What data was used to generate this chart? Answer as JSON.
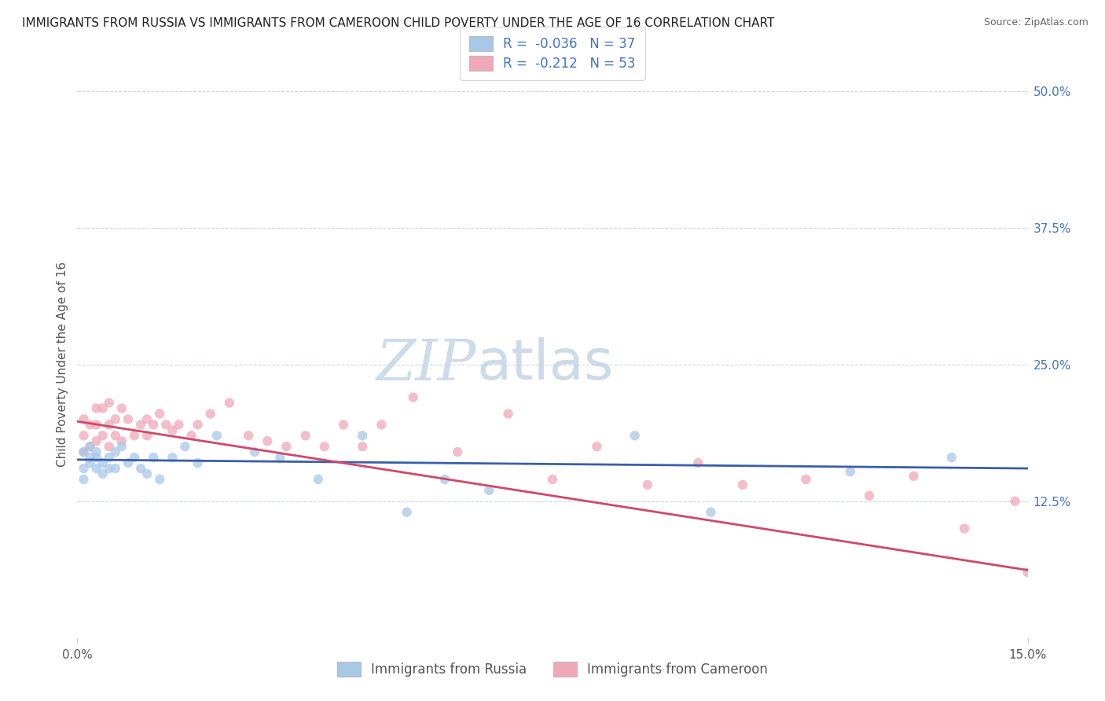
{
  "title": "IMMIGRANTS FROM RUSSIA VS IMMIGRANTS FROM CAMEROON CHILD POVERTY UNDER THE AGE OF 16 CORRELATION CHART",
  "source": "Source: ZipAtlas.com",
  "ylabel": "Child Poverty Under the Age of 16",
  "watermark_zip": "ZIP",
  "watermark_atlas": "atlas",
  "xlim": [
    0.0,
    0.15
  ],
  "ylim": [
    0.0,
    0.5
  ],
  "xtick_labels": [
    "0.0%",
    "15.0%"
  ],
  "ytick_positions": [
    0.125,
    0.25,
    0.375,
    0.5
  ],
  "ytick_labels": [
    "12.5%",
    "25.0%",
    "37.5%",
    "50.0%"
  ],
  "grid_color": "#c8d8e8",
  "background_color": "#ffffff",
  "russia_color": "#a8c8e8",
  "cameroon_color": "#f0a8b8",
  "russia_line_color": "#3a5fa8",
  "cameroon_line_color": "#d04868",
  "russia_scatter_x": [
    0.001,
    0.001,
    0.001,
    0.002,
    0.002,
    0.002,
    0.003,
    0.003,
    0.003,
    0.004,
    0.004,
    0.005,
    0.005,
    0.006,
    0.006,
    0.007,
    0.008,
    0.009,
    0.01,
    0.011,
    0.012,
    0.013,
    0.015,
    0.017,
    0.019,
    0.022,
    0.028,
    0.032,
    0.038,
    0.045,
    0.052,
    0.058,
    0.065,
    0.088,
    0.1,
    0.122,
    0.138
  ],
  "russia_scatter_y": [
    0.17,
    0.155,
    0.145,
    0.165,
    0.16,
    0.175,
    0.17,
    0.155,
    0.165,
    0.16,
    0.15,
    0.155,
    0.165,
    0.17,
    0.155,
    0.175,
    0.16,
    0.165,
    0.155,
    0.15,
    0.165,
    0.145,
    0.165,
    0.175,
    0.16,
    0.185,
    0.17,
    0.165,
    0.145,
    0.185,
    0.115,
    0.145,
    0.135,
    0.185,
    0.115,
    0.152,
    0.165
  ],
  "cameroon_scatter_x": [
    0.001,
    0.001,
    0.001,
    0.002,
    0.002,
    0.003,
    0.003,
    0.003,
    0.004,
    0.004,
    0.005,
    0.005,
    0.005,
    0.006,
    0.006,
    0.007,
    0.007,
    0.008,
    0.009,
    0.01,
    0.011,
    0.011,
    0.012,
    0.013,
    0.014,
    0.015,
    0.016,
    0.018,
    0.019,
    0.021,
    0.024,
    0.027,
    0.03,
    0.033,
    0.036,
    0.039,
    0.042,
    0.045,
    0.048,
    0.053,
    0.06,
    0.068,
    0.075,
    0.082,
    0.09,
    0.098,
    0.105,
    0.115,
    0.125,
    0.132,
    0.14,
    0.148,
    0.15
  ],
  "cameroon_scatter_y": [
    0.2,
    0.185,
    0.17,
    0.195,
    0.175,
    0.21,
    0.195,
    0.18,
    0.21,
    0.185,
    0.215,
    0.195,
    0.175,
    0.2,
    0.185,
    0.21,
    0.18,
    0.2,
    0.185,
    0.195,
    0.2,
    0.185,
    0.195,
    0.205,
    0.195,
    0.19,
    0.195,
    0.185,
    0.195,
    0.205,
    0.215,
    0.185,
    0.18,
    0.175,
    0.185,
    0.175,
    0.195,
    0.175,
    0.195,
    0.22,
    0.17,
    0.205,
    0.145,
    0.175,
    0.14,
    0.16,
    0.14,
    0.145,
    0.13,
    0.148,
    0.1,
    0.125,
    0.06
  ],
  "legend_russia_label": "R =  -0.036   N = 37",
  "legend_cameroon_label": "R =  -0.212   N = 53",
  "legend_russia_label2": "Immigrants from Russia",
  "legend_cameroon_label2": "Immigrants from Cameroon",
  "title_fontsize": 11,
  "axis_label_fontsize": 11,
  "tick_fontsize": 11,
  "legend_fontsize": 12,
  "source_fontsize": 9
}
